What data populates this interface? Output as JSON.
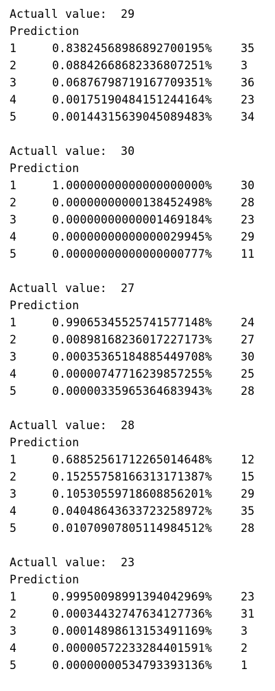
{
  "blocks": [
    {
      "actual_label": "Actuall value:",
      "actual_value": "29",
      "prediction_label": "Prediction",
      "rows": [
        {
          "rank": "1",
          "prob": "0.83824568986892700195%",
          "label": "35"
        },
        {
          "rank": "2",
          "prob": "0.08842668682336807251%",
          "label": "3"
        },
        {
          "rank": "3",
          "prob": "0.06876798719167709351%",
          "label": "36"
        },
        {
          "rank": "4",
          "prob": "0.00175190484151244164%",
          "label": "23"
        },
        {
          "rank": "5",
          "prob": "0.00144315639045089483%",
          "label": "34"
        }
      ]
    },
    {
      "actual_label": "Actuall value:",
      "actual_value": "30",
      "prediction_label": "Prediction",
      "rows": [
        {
          "rank": "1",
          "prob": "1.00000000000000000000%",
          "label": "30"
        },
        {
          "rank": "2",
          "prob": "0.00000000000138452498%",
          "label": "28"
        },
        {
          "rank": "3",
          "prob": "0.00000000000001469184%",
          "label": "23"
        },
        {
          "rank": "4",
          "prob": "0.00000000000000029945%",
          "label": "29"
        },
        {
          "rank": "5",
          "prob": "0.00000000000000000777%",
          "label": "11"
        }
      ]
    },
    {
      "actual_label": "Actuall value:",
      "actual_value": "27",
      "prediction_label": "Prediction",
      "rows": [
        {
          "rank": "1",
          "prob": "0.99065345525741577148%",
          "label": "24"
        },
        {
          "rank": "2",
          "prob": "0.00898168236017227173%",
          "label": "27"
        },
        {
          "rank": "3",
          "prob": "0.00035365184885449708%",
          "label": "30"
        },
        {
          "rank": "4",
          "prob": "0.00000747716239857255%",
          "label": "25"
        },
        {
          "rank": "5",
          "prob": "0.00000335965364683943%",
          "label": "28"
        }
      ]
    },
    {
      "actual_label": "Actuall value:",
      "actual_value": "28",
      "prediction_label": "Prediction",
      "rows": [
        {
          "rank": "1",
          "prob": "0.68852561712265014648%",
          "label": "12"
        },
        {
          "rank": "2",
          "prob": "0.15255758166313171387%",
          "label": "15"
        },
        {
          "rank": "3",
          "prob": "0.10530559718608856201%",
          "label": "29"
        },
        {
          "rank": "4",
          "prob": "0.04048643633723258972%",
          "label": "35"
        },
        {
          "rank": "5",
          "prob": "0.01070907805114984512%",
          "label": "28"
        }
      ]
    },
    {
      "actual_label": "Actuall value:",
      "actual_value": "23",
      "prediction_label": "Prediction",
      "rows": [
        {
          "rank": "1",
          "prob": "0.99950098991394042969%",
          "label": "23"
        },
        {
          "rank": "2",
          "prob": "0.00034432747634127736%",
          "label": "31"
        },
        {
          "rank": "3",
          "prob": "0.00014898613153491169%",
          "label": "3"
        },
        {
          "rank": "4",
          "prob": "0.00000572233284401591%",
          "label": "2"
        },
        {
          "rank": "5",
          "prob": "0.00000000534793393136%",
          "label": "1"
        }
      ]
    }
  ]
}
